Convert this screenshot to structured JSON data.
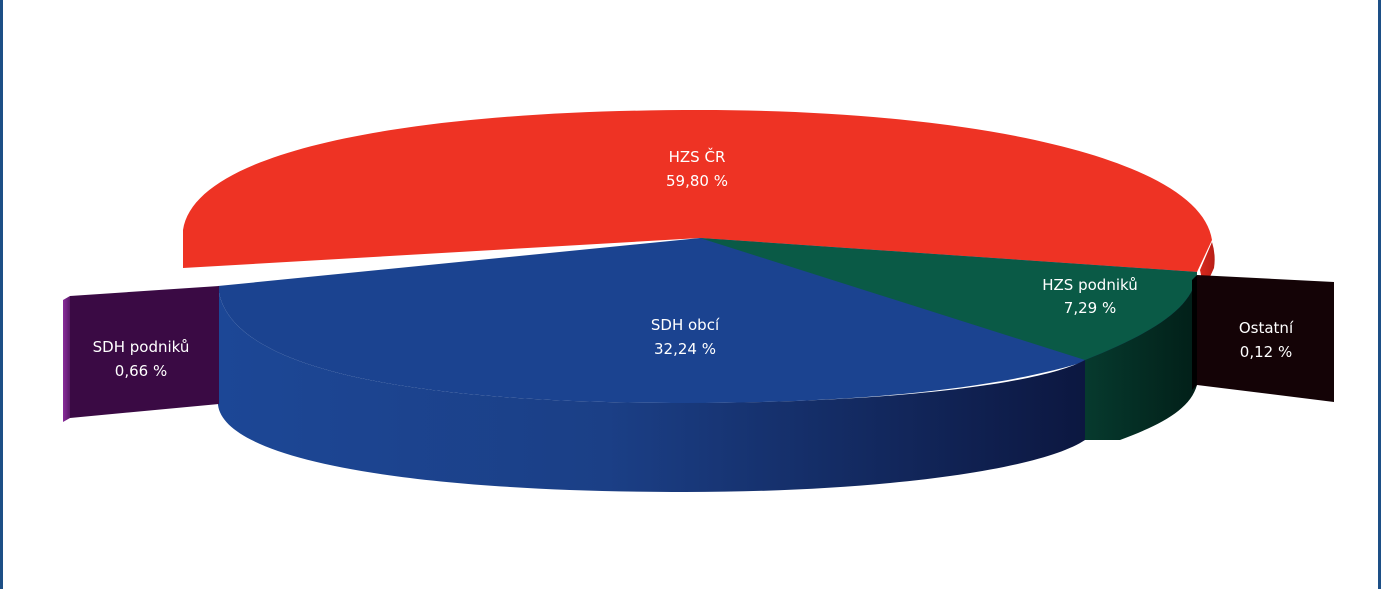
{
  "chart_data": {
    "type": "pie",
    "style": "3d-exploded",
    "slices": [
      {
        "label": "HZS ČR",
        "value_text": "59,80 %",
        "value": 59.8,
        "color": "#ee3324"
      },
      {
        "label": "SDH obcí",
        "value_text": "32,24 %",
        "value": 32.24,
        "color": "#1b4390"
      },
      {
        "label": "HZS podniků",
        "value_text": "7,29 %",
        "value": 7.29,
        "color": "#0a5a46"
      },
      {
        "label": "Ostatní",
        "value_text": "0,12 %",
        "value": 0.12,
        "color": "#140306"
      },
      {
        "label": "SDH podniků",
        "value_text": "0,66 %",
        "value": 0.66,
        "color": "#3a0a44"
      }
    ]
  }
}
